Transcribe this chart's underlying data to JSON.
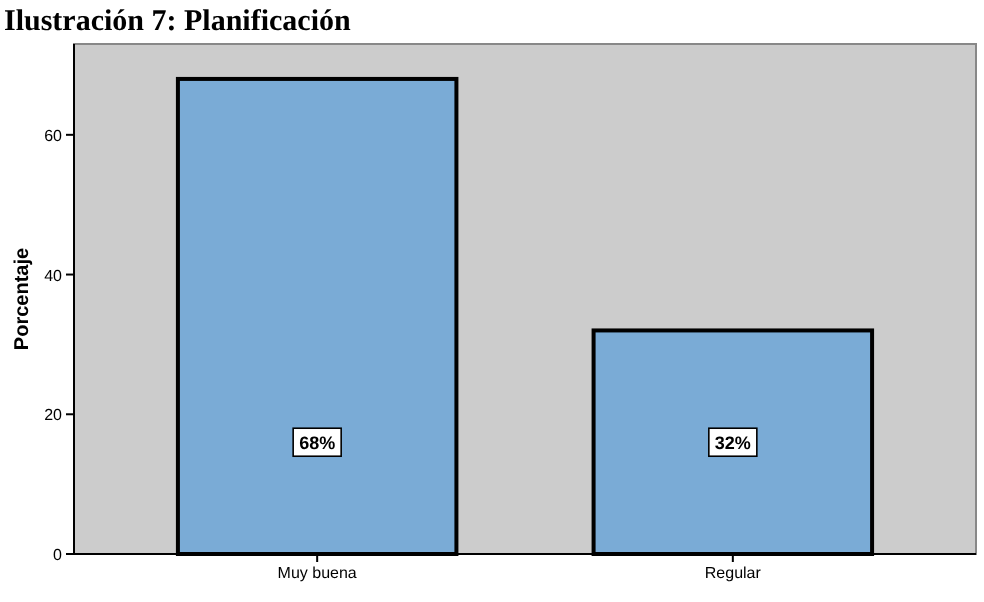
{
  "chart_data": {
    "type": "bar",
    "title": "Ilustración 7: Planificación",
    "ylabel": "Porcentaje",
    "categories": [
      "Muy buena",
      "Regular"
    ],
    "values": [
      68,
      32
    ],
    "color": "#7aabd6",
    "value_labels": [
      "68%",
      "32%"
    ],
    "ylim": [
      0,
      73
    ],
    "yticks": [
      0,
      20,
      40,
      60
    ],
    "grid": false
  }
}
